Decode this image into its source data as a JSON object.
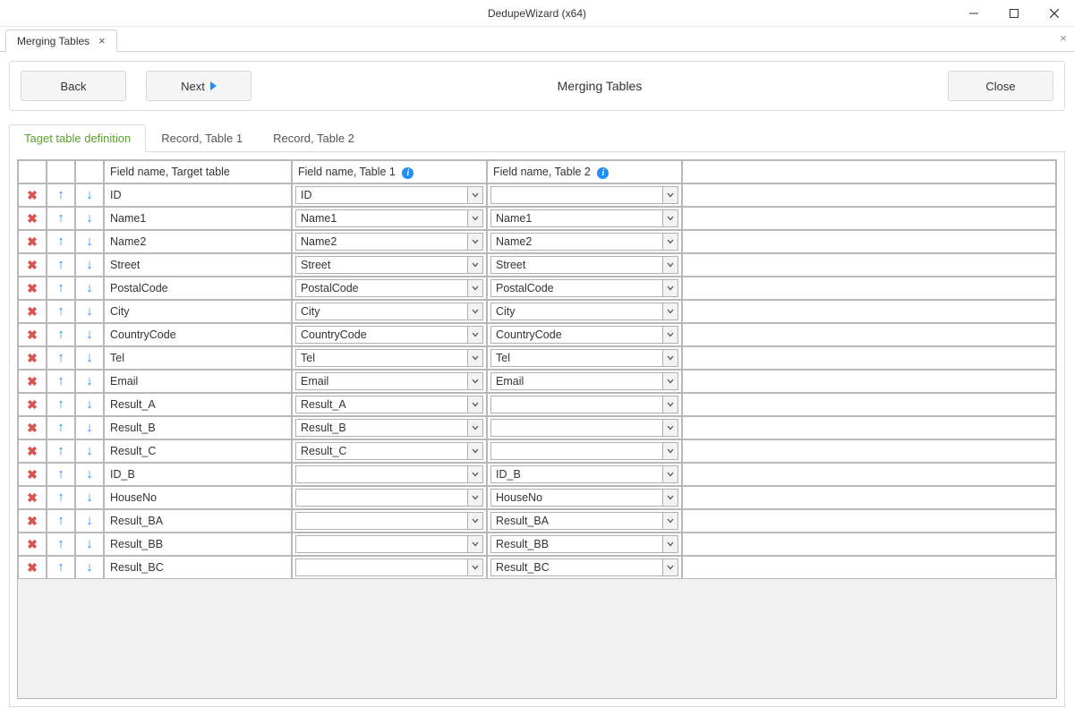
{
  "window": {
    "title": "DedupeWizard  (x64)"
  },
  "docTab": {
    "label": "Merging Tables"
  },
  "nav": {
    "back": "Back",
    "next": "Next",
    "close": "Close",
    "title": "Merging Tables"
  },
  "innerTabs": {
    "t0": "Taget table definition",
    "t1": "Record, Table 1",
    "t2": "Record, Table 2"
  },
  "columns": {
    "target": "Field name, Target table",
    "t1": "Field name, Table 1",
    "t2": "Field name, Table 2"
  },
  "rows": [
    {
      "target": "ID",
      "t1": "ID",
      "t2": ""
    },
    {
      "target": "Name1",
      "t1": "Name1",
      "t2": "Name1"
    },
    {
      "target": "Name2",
      "t1": "Name2",
      "t2": "Name2"
    },
    {
      "target": "Street",
      "t1": "Street",
      "t2": "Street"
    },
    {
      "target": "PostalCode",
      "t1": "PostalCode",
      "t2": "PostalCode"
    },
    {
      "target": "City",
      "t1": "City",
      "t2": "City"
    },
    {
      "target": "CountryCode",
      "t1": "CountryCode",
      "t2": "CountryCode"
    },
    {
      "target": "Tel",
      "t1": "Tel",
      "t2": "Tel"
    },
    {
      "target": "Email",
      "t1": "Email",
      "t2": "Email"
    },
    {
      "target": "Result_A",
      "t1": "Result_A",
      "t2": ""
    },
    {
      "target": "Result_B",
      "t1": "Result_B",
      "t2": ""
    },
    {
      "target": "Result_C",
      "t1": "Result_C",
      "t2": ""
    },
    {
      "target": "ID_B",
      "t1": "",
      "t2": "ID_B"
    },
    {
      "target": "HouseNo",
      "t1": "",
      "t2": "HouseNo"
    },
    {
      "target": "Result_BA",
      "t1": "",
      "t2": "Result_BA"
    },
    {
      "target": "Result_BB",
      "t1": "",
      "t2": "Result_BB"
    },
    {
      "target": "Result_BC",
      "t1": "",
      "t2": "Result_BC"
    }
  ],
  "colors": {
    "accent": "#5aa02c",
    "link": "#1f8fff",
    "delete": "#d9534f",
    "border": "#b8b8b8",
    "panelBorder": "#dcdcdc",
    "gridFill": "#f1f1f1"
  }
}
